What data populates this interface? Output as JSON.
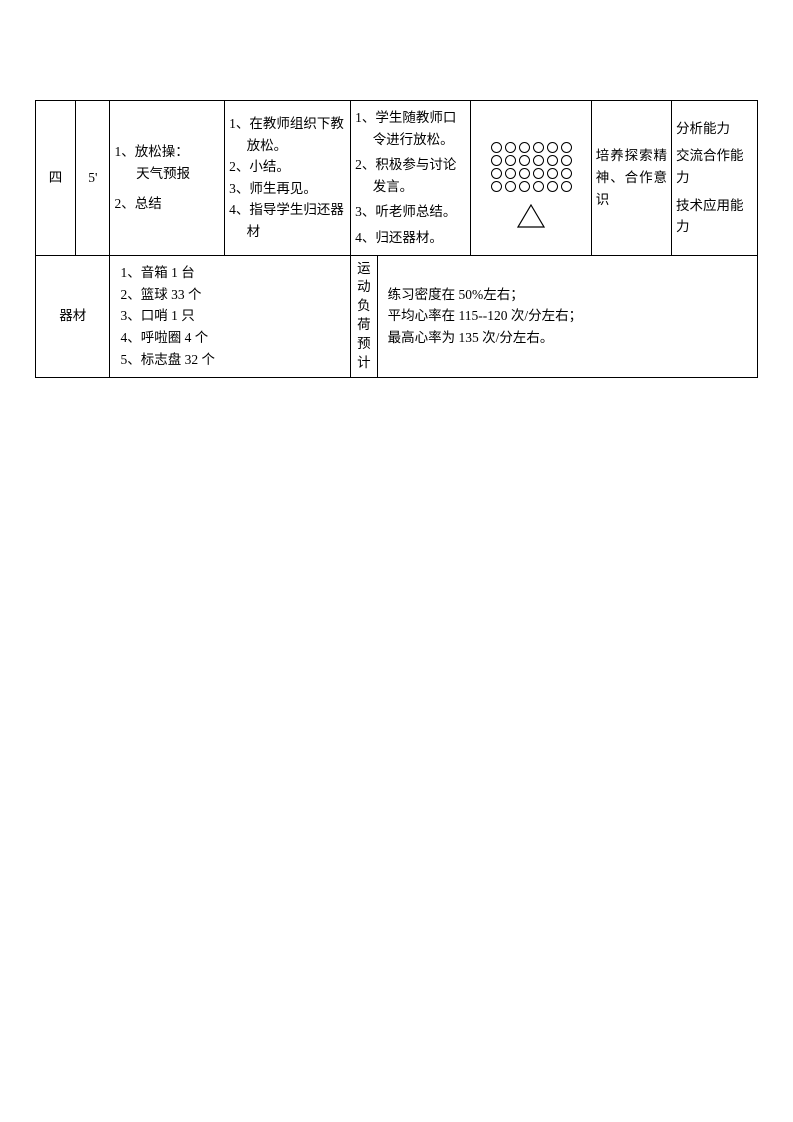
{
  "row1": {
    "col1": "四",
    "col2": "5'",
    "col3": {
      "i1": "1、放松操：",
      "i1b": "天气预报",
      "i2": "2、总结"
    },
    "col4": {
      "i1": "1、在教师组织下教放松。",
      "i2": "2、小结。",
      "i3": "3、师生再见。",
      "i4": "4、指导学生归还器材"
    },
    "col5": {
      "i1": "1、学生随教师口令进行放松。",
      "i2": "2、积极参与讨论发言。",
      "i3": "3、听老师总结。",
      "i4": "4、归还器材。"
    },
    "col7": "培养探索精神、合作意识",
    "col8": {
      "i1": "分析能力",
      "i2": "交流合作能力",
      "i3": "技术应用能力"
    }
  },
  "formation": {
    "rows": 4,
    "cols": 6,
    "circle_color": "#000000",
    "triangle_size": 28
  },
  "row2": {
    "label1": "器材",
    "equip": {
      "i1": "1、音箱 1 台",
      "i2": "2、篮球 33 个",
      "i3": "3、口哨 1 只",
      "i4": "4、呼啦圈 4 个",
      "i5": "5、标志盘 32 个"
    },
    "label2a": "运",
    "label2b": "动",
    "label2c": "负",
    "label2d": "荷",
    "label2e": "预",
    "label2f": "计",
    "load": {
      "i1": "练习密度在 50%左右；",
      "i2": "平均心率在 115--120 次/分左右；",
      "i3": "最高心率为 135 次/分左右。"
    }
  },
  "colors": {
    "border": "#000000",
    "text": "#000000",
    "bg": "#ffffff"
  }
}
